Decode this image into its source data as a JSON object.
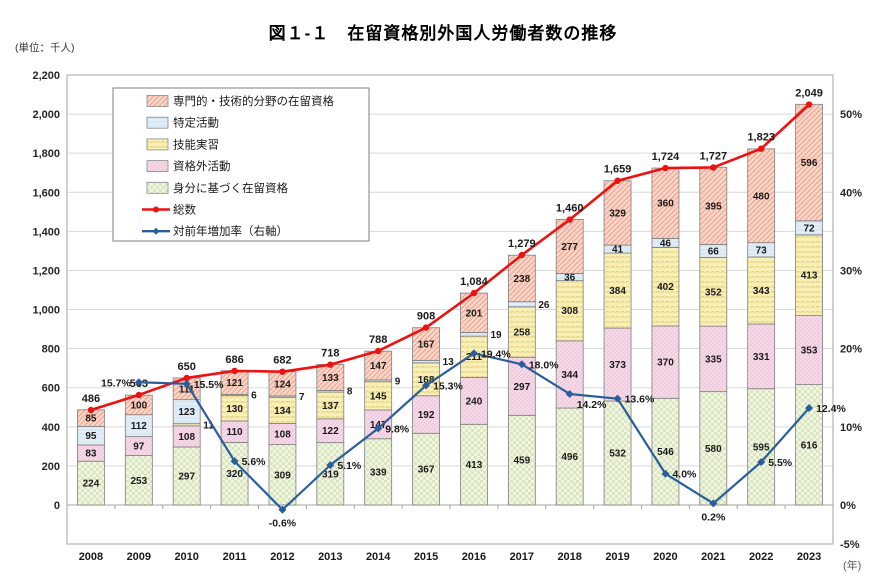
{
  "page": {
    "title": "図１-１　在留資格別外国人労働者数の推移",
    "unit_label": "(単位：千人)",
    "year_note": "(年)"
  },
  "chart_data": {
    "type": "bar",
    "subtype": "stacked-bars-with-lines",
    "title": "図１-１　在留資格別外国人労働者数の推移",
    "unit": "千人",
    "categories": [
      "2008",
      "2009",
      "2010",
      "2011",
      "2012",
      "2013",
      "2014",
      "2015",
      "2016",
      "2017",
      "2018",
      "2019",
      "2020",
      "2021",
      "2022",
      "2023"
    ],
    "series": [
      {
        "name": "身分に基づく在留資格",
        "swatch": "green",
        "values": [
          224,
          253,
          297,
          320,
          309,
          319,
          339,
          367,
          413,
          459,
          496,
          532,
          546,
          580,
          595,
          616
        ]
      },
      {
        "name": "資格外活動",
        "swatch": "pink",
        "values": [
          83,
          97,
          108,
          110,
          108,
          122,
          147,
          192,
          240,
          297,
          344,
          373,
          370,
          335,
          331,
          353
        ]
      },
      {
        "name": "技能実習",
        "swatch": "yellow",
        "values": [
          null,
          null,
          11,
          130,
          134,
          137,
          145,
          168,
          211,
          258,
          308,
          384,
          402,
          352,
          343,
          413
        ]
      },
      {
        "name": "特定活動",
        "swatch": "blue",
        "values": [
          95,
          112,
          123,
          6,
          7,
          8,
          9,
          13,
          19,
          26,
          36,
          41,
          46,
          66,
          73,
          72
        ]
      },
      {
        "name": "専門的・技術的分野の在留資格",
        "swatch": "salmon",
        "values": [
          85,
          100,
          111,
          121,
          124,
          133,
          147,
          167,
          201,
          238,
          277,
          329,
          360,
          395,
          480,
          596
        ]
      }
    ],
    "line_series": [
      {
        "name": "総数",
        "axis": "left",
        "marker": "circle",
        "values": [
          486,
          563,
          650,
          686,
          682,
          718,
          788,
          908,
          1084,
          1279,
          1460,
          1659,
          1724,
          1727,
          1823,
          2049
        ]
      },
      {
        "name": "対前年増加率（右軸）",
        "axis": "right",
        "marker": "diamond",
        "values": [
          null,
          15.7,
          15.5,
          5.6,
          -0.6,
          5.1,
          9.8,
          15.3,
          19.4,
          18.0,
          14.2,
          13.6,
          4.0,
          0.2,
          5.5,
          12.4
        ]
      }
    ],
    "left_axis": {
      "min": 0,
      "max": 2200,
      "tick_step": 200,
      "plot_min": -200,
      "grid": true
    },
    "right_axis": {
      "ticks": [
        -5,
        0,
        10,
        20,
        30,
        40,
        50
      ],
      "unit": "%",
      "min": -5,
      "max": 55
    },
    "legend": [
      {
        "label": "専門的・技術的分野の在留資格",
        "swatch": "salmon"
      },
      {
        "label": "特定活動",
        "swatch": "blue"
      },
      {
        "label": "技能実習",
        "swatch": "yellow"
      },
      {
        "label": "資格外活動",
        "swatch": "pink"
      },
      {
        "label": "身分に基づく在留資格",
        "swatch": "green"
      },
      {
        "label": "総数",
        "swatch": "line-red"
      },
      {
        "label": "対前年増加率（右軸）",
        "swatch": "line-blue"
      }
    ],
    "colors": {
      "green": {
        "bg": "#f1f5e4",
        "fg": "#d9e6c0"
      },
      "pink": {
        "bg": "#f8dbe9",
        "fg": "#edc5da"
      },
      "yellow": {
        "bg": "#f8efb4",
        "fg": "#e2cc7e"
      },
      "blue": {
        "bg": "#e2edf7",
        "fg": "#cadeee"
      },
      "salmon": {
        "bg": "#f9d6c9",
        "fg": "#eca28c"
      },
      "total_line": "#ee1111",
      "growth_line": "#2b5d9b",
      "grid": "#d9d9d9",
      "frame": "#a6a6a6",
      "segment_border": "#7f7f7f"
    }
  }
}
